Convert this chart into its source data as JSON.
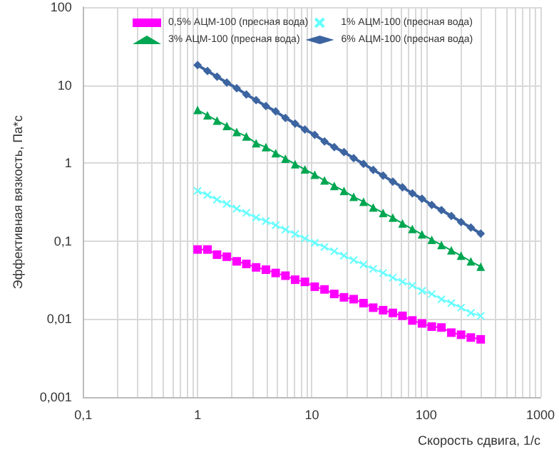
{
  "chart_data": {
    "type": "line",
    "xlabel": "Скорость сдвига, 1/с",
    "ylabel": "Эффективная вязкость, Па*с",
    "log": "xy",
    "grid": true,
    "legend": "top",
    "xlim": [
      0.1,
      1000
    ],
    "ylim": [
      0.001,
      100
    ],
    "xticks": [
      {
        "value": 0.1,
        "label": "0,1"
      },
      {
        "value": 0.2,
        "label": null
      },
      {
        "value": 0.3,
        "label": null
      },
      {
        "value": 0.4,
        "label": null
      },
      {
        "value": 0.5,
        "label": null
      },
      {
        "value": 0.6,
        "label": null
      },
      {
        "value": 0.7,
        "label": null
      },
      {
        "value": 0.8,
        "label": null
      },
      {
        "value": 0.9,
        "label": null
      },
      1,
      {
        "value": 2,
        "label": null
      },
      {
        "value": 3,
        "label": null
      },
      {
        "value": 4,
        "label": null
      },
      {
        "value": 5,
        "label": null
      },
      {
        "value": 6,
        "label": null
      },
      {
        "value": 7,
        "label": null
      },
      {
        "value": 8,
        "label": null
      },
      {
        "value": 9,
        "label": null
      },
      10,
      {
        "value": 20,
        "label": null
      },
      {
        "value": 30,
        "label": null
      },
      {
        "value": 40,
        "label": null
      },
      {
        "value": 50,
        "label": null
      },
      {
        "value": 60,
        "label": null
      },
      {
        "value": 70,
        "label": null
      },
      {
        "value": 80,
        "label": null
      },
      {
        "value": 90,
        "label": null
      },
      100,
      {
        "value": 200,
        "label": null
      },
      {
        "value": 300,
        "label": null
      },
      {
        "value": 400,
        "label": null
      },
      {
        "value": 500,
        "label": null
      },
      {
        "value": 600,
        "label": null
      },
      {
        "value": 700,
        "label": null
      },
      {
        "value": 800,
        "label": null
      },
      {
        "value": 900,
        "label": null
      },
      1000
    ],
    "yticks": [
      {
        "value": 0.001,
        "label": "0,001"
      },
      {
        "value": 0.01,
        "label": "0,01"
      },
      {
        "value": 0.1,
        "label": "0,1"
      },
      1,
      10,
      100
    ],
    "x": [
      1,
      1.22,
      1.48,
      1.8,
      2.2,
      2.67,
      3.25,
      3.96,
      4.82,
      5.87,
      7.14,
      8.69,
      10.6,
      12.9,
      15.7,
      19.1,
      23.2,
      28.3,
      34.4,
      42,
      51.1,
      62.1,
      75.7,
      92,
      112,
      136,
      166,
      202,
      246,
      300
    ],
    "series": [
      {
        "name": "0,5% АЦМ-100 (пресная вода)",
        "color": "#ff00ff",
        "marker": "square",
        "values": [
          0.078,
          0.078,
          0.067,
          0.063,
          0.055,
          0.051,
          0.046,
          0.043,
          0.039,
          0.036,
          0.032,
          0.03,
          0.026,
          0.024,
          0.021,
          0.019,
          0.018,
          0.016,
          0.014,
          0.013,
          0.012,
          0.011,
          0.0096,
          0.0088,
          0.008,
          0.0078,
          0.0067,
          0.0063,
          0.0058,
          0.0055
        ]
      },
      {
        "name": "1% АЦМ-100 (пресная вода)",
        "color": "#66ffff",
        "marker": "cross",
        "values": [
          0.44,
          0.39,
          0.34,
          0.3,
          0.26,
          0.23,
          0.2,
          0.18,
          0.16,
          0.14,
          0.123,
          0.108,
          0.095,
          0.084,
          0.074,
          0.065,
          0.057,
          0.05,
          0.044,
          0.039,
          0.034,
          0.03,
          0.027,
          0.023,
          0.021,
          0.018,
          0.016,
          0.014,
          0.012,
          0.011
        ]
      },
      {
        "name": "3% АЦМ-100 (пресная вода)",
        "color": "#00a651",
        "marker": "triangle",
        "values": [
          4.8,
          4.1,
          3.5,
          3,
          2.5,
          2.2,
          1.8,
          1.6,
          1.34,
          1.14,
          0.97,
          0.83,
          0.71,
          0.6,
          0.51,
          0.44,
          0.37,
          0.32,
          0.27,
          0.23,
          0.2,
          0.168,
          0.143,
          0.122,
          0.104,
          0.089,
          0.076,
          0.065,
          0.055,
          0.047
        ]
      },
      {
        "name": "6% АЦМ-100 (пресная вода)",
        "color": "#3c64a0",
        "marker": "diamond",
        "values": [
          18,
          15.2,
          12.8,
          10.8,
          9.1,
          7.6,
          6.4,
          5.4,
          4.6,
          3.8,
          3.2,
          2.7,
          2.3,
          1.9,
          1.6,
          1.38,
          1.16,
          0.98,
          0.82,
          0.69,
          0.58,
          0.49,
          0.41,
          0.35,
          0.29,
          0.25,
          0.21,
          0.176,
          0.149,
          0.125
        ]
      }
    ]
  }
}
